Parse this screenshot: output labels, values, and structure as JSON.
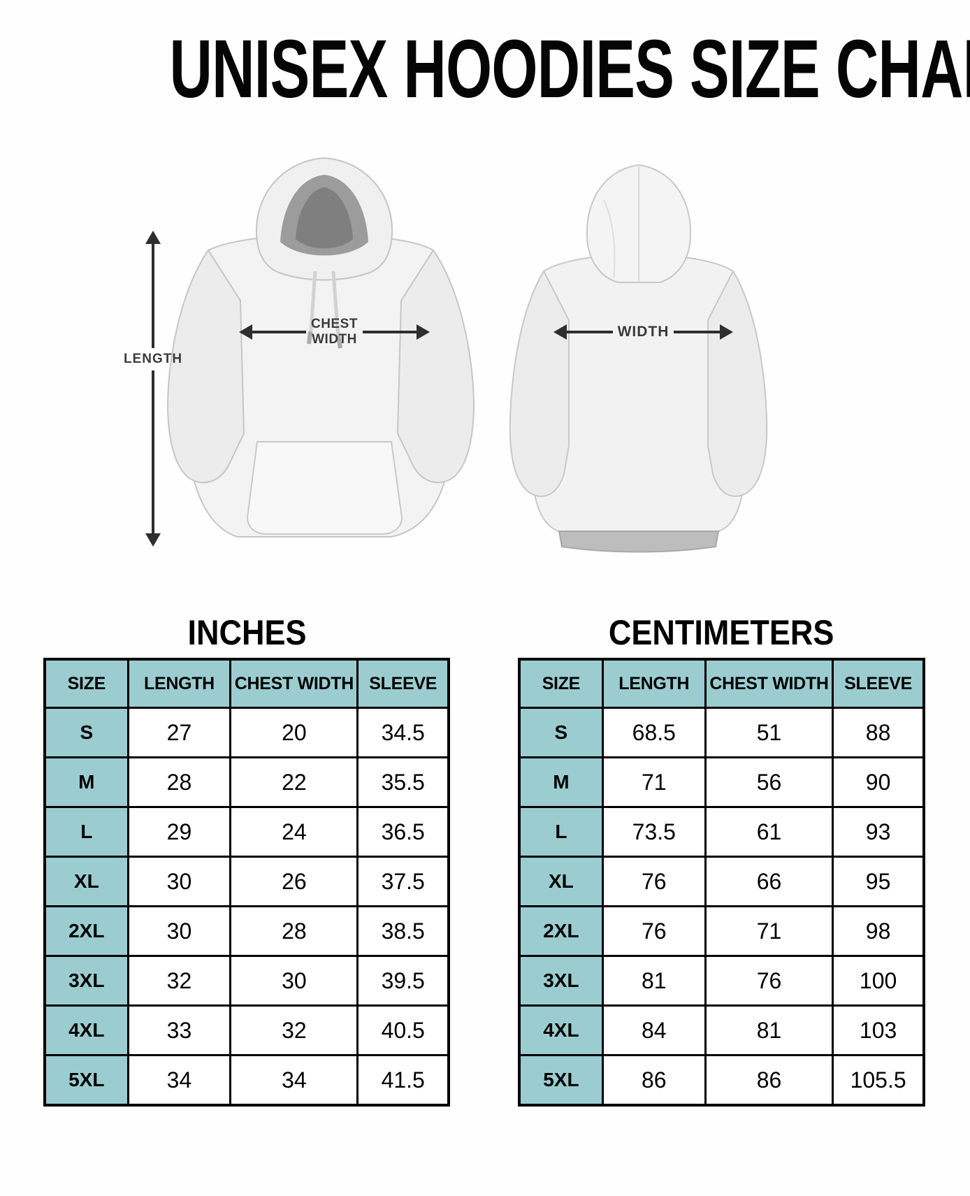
{
  "title": "UNISEX HOODIES SIZE CHART",
  "diagram": {
    "length_label": "LENGTH",
    "chest_width_line1": "CHEST",
    "chest_width_line2": "WIDTH",
    "back_width_label": "WIDTH"
  },
  "colors": {
    "header_background": "#9bcdd0",
    "table_border": "#000000",
    "arrow": "#2e2e2e"
  },
  "chart_data": [
    {
      "type": "table",
      "title": "INCHES",
      "columns": [
        "SIZE",
        "LENGTH",
        "CHEST WIDTH",
        "SLEEVE"
      ],
      "rows": [
        [
          "S",
          "27",
          "20",
          "34.5"
        ],
        [
          "M",
          "28",
          "22",
          "35.5"
        ],
        [
          "L",
          "29",
          "24",
          "36.5"
        ],
        [
          "XL",
          "30",
          "26",
          "37.5"
        ],
        [
          "2XL",
          "30",
          "28",
          "38.5"
        ],
        [
          "3XL",
          "32",
          "30",
          "39.5"
        ],
        [
          "4XL",
          "33",
          "32",
          "40.5"
        ],
        [
          "5XL",
          "34",
          "34",
          "41.5"
        ]
      ]
    },
    {
      "type": "table",
      "title": "CENTIMETERS",
      "columns": [
        "SIZE",
        "LENGTH",
        "CHEST WIDTH",
        "SLEEVE"
      ],
      "rows": [
        [
          "S",
          "68.5",
          "51",
          "88"
        ],
        [
          "M",
          "71",
          "56",
          "90"
        ],
        [
          "L",
          "73.5",
          "61",
          "93"
        ],
        [
          "XL",
          "76",
          "66",
          "95"
        ],
        [
          "2XL",
          "76",
          "71",
          "98"
        ],
        [
          "3XL",
          "81",
          "76",
          "100"
        ],
        [
          "4XL",
          "84",
          "81",
          "103"
        ],
        [
          "5XL",
          "86",
          "86",
          "105.5"
        ]
      ]
    }
  ]
}
